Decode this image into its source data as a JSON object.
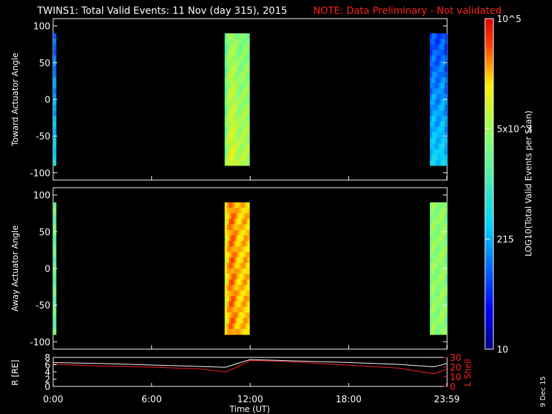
{
  "header": {
    "title": "TWINS1: Total Valid Events: 11 Nov (day 315), 2015",
    "note": "NOTE: Data Preliminary - Not validated",
    "note_color": "#ff2020"
  },
  "stamp": "9 Dec 15",
  "chart_data": [
    {
      "type": "heatmap",
      "ylabel": "Toward Actuator Angle",
      "ylim": [
        -110,
        110
      ],
      "yticks": [
        100,
        50,
        0,
        -50,
        -100
      ],
      "y_extent": [
        -90,
        90
      ],
      "xlim": [
        0,
        24
      ],
      "blocks": [
        {
          "x_start": 0.0,
          "x_end": 0.1,
          "level": 0.28
        },
        {
          "x_start": 10.45,
          "x_end": 11.95,
          "level": 0.62
        },
        {
          "x_start": 22.95,
          "x_end": 23.983,
          "level": 0.3
        }
      ]
    },
    {
      "type": "heatmap",
      "ylabel": "Away Actuator Angle",
      "ylim": [
        -110,
        110
      ],
      "yticks": [
        100,
        50,
        0,
        -50,
        -100
      ],
      "y_extent": [
        -90,
        90
      ],
      "xlim": [
        0,
        24
      ],
      "blocks": [
        {
          "x_start": 0.0,
          "x_end": 0.1,
          "level": 0.45
        },
        {
          "x_start": 10.45,
          "x_end": 11.95,
          "level": 0.75
        },
        {
          "x_start": 22.95,
          "x_end": 23.983,
          "level": 0.55
        }
      ]
    },
    {
      "type": "line",
      "xlabel": "Time (UT)",
      "xlim": [
        0,
        24
      ],
      "xticks": [
        {
          "value": 0,
          "label": "0:00"
        },
        {
          "value": 6,
          "label": "6:00"
        },
        {
          "value": 12,
          "label": "12:00"
        },
        {
          "value": 18,
          "label": "18:00"
        },
        {
          "value": 23.983,
          "label": "23:59"
        }
      ],
      "y_left": {
        "label": "R [RE]",
        "ylim": [
          0,
          8
        ],
        "ticks": [
          0,
          2,
          4,
          6,
          8
        ]
      },
      "y_right": {
        "label": "L Shell",
        "ylim": [
          0,
          30
        ],
        "ticks": [
          0,
          10,
          20,
          30
        ],
        "color": "#ff2020"
      },
      "series": [
        {
          "axis": "left",
          "color": "#ffffff",
          "x": [
            0,
            3,
            6,
            9,
            10.5,
            11.2,
            12,
            15,
            18,
            21,
            23.2,
            23.983
          ],
          "y": [
            6.6,
            6.3,
            5.9,
            5.5,
            5.3,
            6.3,
            7.4,
            7.0,
            6.6,
            6.1,
            5.4,
            6.3
          ]
        },
        {
          "axis": "right",
          "color": "#ff2020",
          "x": [
            0,
            3,
            6,
            9,
            10.5,
            11.2,
            12,
            15,
            18,
            21,
            23.2,
            23.983
          ],
          "y": [
            23,
            21,
            20,
            18,
            15,
            20,
            27,
            25,
            22,
            19,
            13,
            18
          ]
        }
      ]
    }
  ],
  "colorbar": {
    "label": "LOG10(Total Valid Events per Scan)",
    "ticks": [
      {
        "label": "10",
        "level": 0
      },
      {
        "label": "215",
        "level": 0.333
      },
      {
        "label": "5x10^3",
        "level": 0.667
      },
      {
        "label": "10^5",
        "level": 1
      }
    ]
  }
}
